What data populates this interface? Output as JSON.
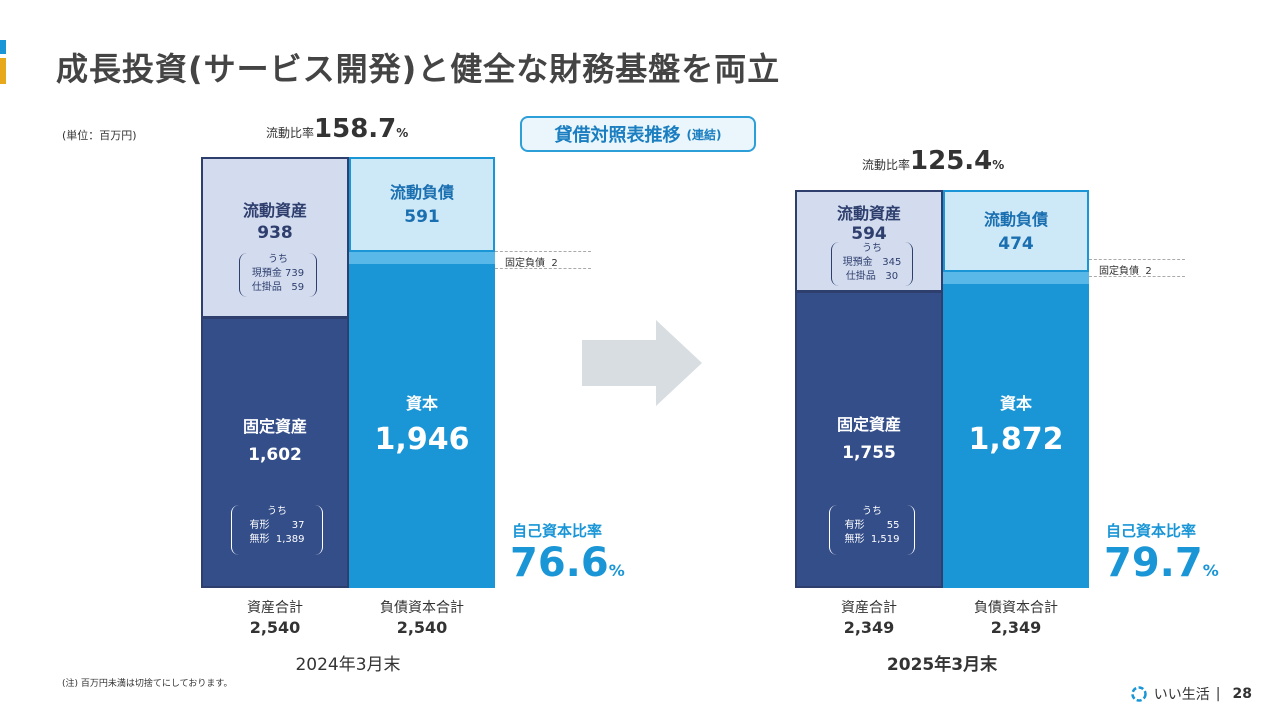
{
  "title": "成長投資(サービス開発)と健全な財務基盤を両立",
  "unit": "(単位：百万円)",
  "badge": {
    "main": "貸借対照表推移",
    "sub": "(連結)"
  },
  "ratio_label": "流動比率",
  "fixed_liab_label": "固定負債",
  "equity_ratio_label": "自己資本比率",
  "uchi": "うち",
  "periods": [
    {
      "date": "2024年3月末",
      "current_ratio": "158.7",
      "current_ratio_unit": "%",
      "current_assets_label": "流動資産",
      "current_assets": "938",
      "cash_label": "現預金",
      "cash": "739",
      "wip_label": "仕掛品",
      "wip": "59",
      "fixed_assets_label": "固定資産",
      "fixed_assets": "1,602",
      "tangible_label": "有形",
      "tangible": "37",
      "intangible_label": "無形",
      "intangible": "1,389",
      "current_liab_label": "流動負債",
      "current_liab": "591",
      "fixed_liab": "2",
      "capital_label": "資本",
      "capital": "1,946",
      "equity_ratio": "76.6",
      "equity_ratio_unit": "%",
      "assets_total_label": "資産合計",
      "assets_total": "2,540",
      "liab_cap_total_label": "負債資本合計",
      "liab_cap_total": "2,540"
    },
    {
      "date": "2025年3月末",
      "current_ratio": "125.4",
      "current_ratio_unit": "%",
      "current_assets_label": "流動資産",
      "current_assets": "594",
      "cash_label": "現預金",
      "cash": "345",
      "wip_label": "仕掛品",
      "wip": "30",
      "fixed_assets_label": "固定資産",
      "fixed_assets": "1,755",
      "tangible_label": "有形",
      "tangible": "55",
      "intangible_label": "無形",
      "intangible": "1,519",
      "current_liab_label": "流動負債",
      "current_liab": "474",
      "fixed_liab": "2",
      "capital_label": "資本",
      "capital": "1,872",
      "equity_ratio": "79.7",
      "equity_ratio_unit": "%",
      "assets_total_label": "資産合計",
      "assets_total": "2,349",
      "liab_cap_total_label": "負債資本合計",
      "liab_cap_total": "2,349"
    }
  ],
  "note": "(注) 百万円未満は切捨てにしております。",
  "footer": {
    "brand": "いい生活",
    "separator": "|",
    "page": "28"
  },
  "colors": {
    "navy": "#344e89",
    "light_navy": "#d3dbee",
    "blue": "#1a96d6",
    "light_blue": "#cde9f8",
    "arrow": "#d8dde2"
  }
}
